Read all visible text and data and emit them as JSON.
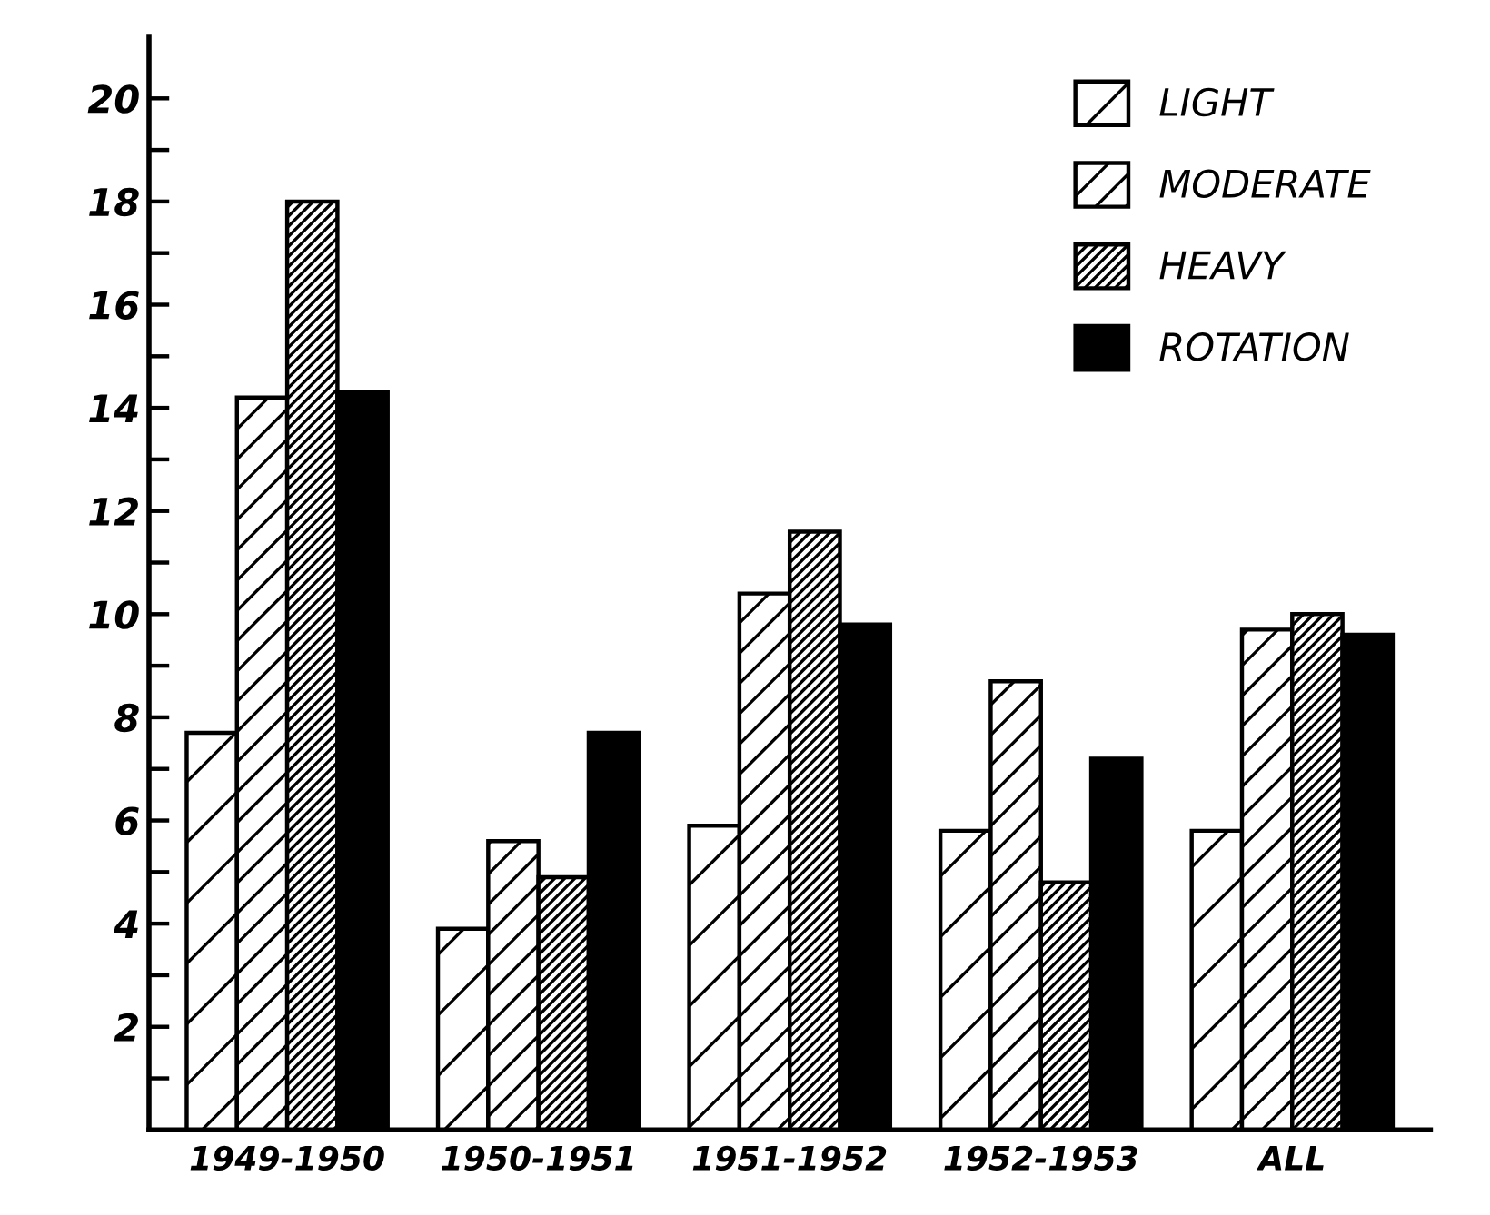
{
  "chart_data": {
    "type": "bar",
    "categories": [
      "1949-1950",
      "1950-1951",
      "1951-1952",
      "1952-1953",
      "ALL"
    ],
    "series": [
      {
        "name": "LIGHT",
        "color": "#000000",
        "values": [
          7.7,
          3.9,
          5.9,
          5.8,
          5.8
        ]
      },
      {
        "name": "MODERATE",
        "color": "#000000",
        "values": [
          14.2,
          5.6,
          10.4,
          8.7,
          9.7
        ]
      },
      {
        "name": "HEAVY",
        "color": "#000000",
        "values": [
          18.0,
          4.9,
          11.6,
          4.8,
          10.0
        ]
      },
      {
        "name": "ROTATION",
        "color": "#000000",
        "values": [
          14.3,
          7.7,
          9.8,
          7.2,
          9.6
        ]
      }
    ],
    "ylim": [
      0,
      21.2
    ],
    "yticks": [
      {
        "value": 1,
        "label": null
      },
      2,
      {
        "value": 3,
        "label": null
      },
      4,
      {
        "value": 5,
        "label": null
      },
      6,
      {
        "value": 7,
        "label": null
      },
      8,
      {
        "value": 9,
        "label": null
      },
      10,
      {
        "value": 11,
        "label": null
      },
      12,
      {
        "value": 13,
        "label": null
      },
      14,
      {
        "value": 15,
        "label": null
      },
      16,
      {
        "value": 17,
        "label": null
      },
      18,
      {
        "value": 19,
        "label": null
      },
      20
    ],
    "grid": false,
    "legend": "top right"
  }
}
